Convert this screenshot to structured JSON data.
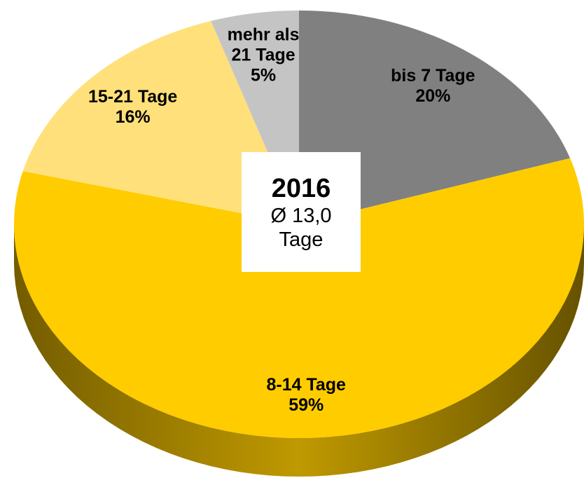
{
  "chart_data": {
    "type": "pie",
    "categories": [
      "bis 7 Tage",
      "8-14 Tage",
      "15-21 Tage",
      "mehr als 21 Tage"
    ],
    "values": [
      20,
      59,
      16,
      5
    ],
    "value_labels": [
      "20%",
      "59%",
      "16%",
      "5%"
    ],
    "colors": [
      "#808080",
      "#ffcc00",
      "#ffe07a",
      "#c4c4c4"
    ],
    "annotations": {
      "center_title": "2016",
      "center_text": "Ø 13,0 Tage"
    }
  }
}
